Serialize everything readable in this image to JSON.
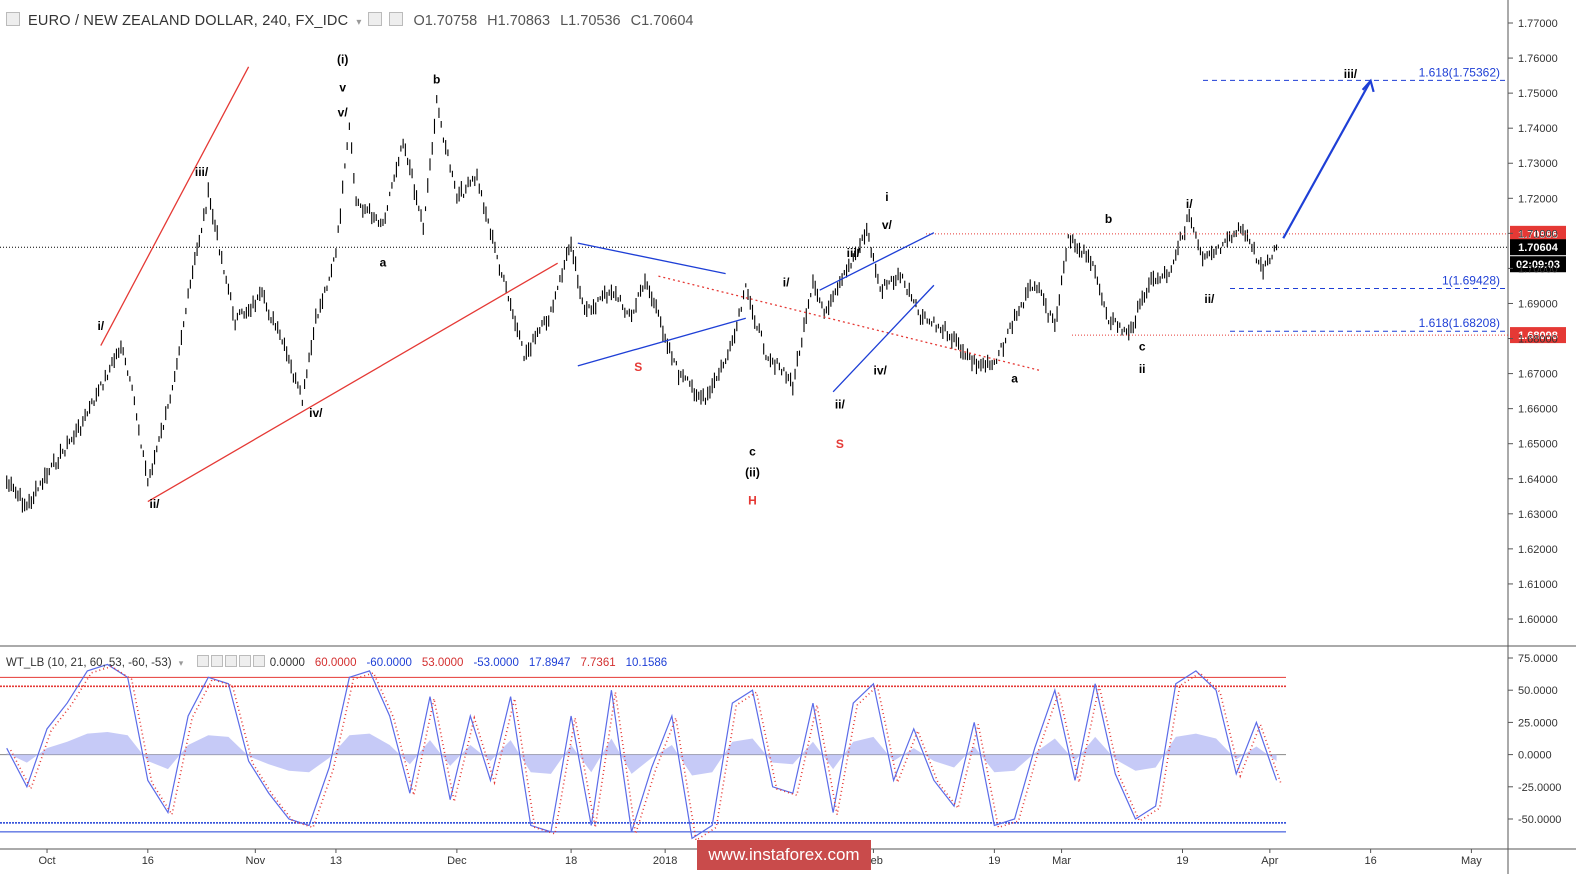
{
  "header": {
    "symbol": "EURO / NEW ZEALAND DOLLAR, 240, FX_IDC",
    "open": "O1.70758",
    "high": "H1.70863",
    "low": "L1.70536",
    "close": "C1.70604"
  },
  "indicator": {
    "name": "WT_LB (10, 21, 60, 53, -60, -53)",
    "values": [
      "0.0000",
      "60.0000",
      "-60.0000",
      "53.0000",
      "-53.0000",
      "17.8947",
      "7.7361",
      "10.1586"
    ],
    "value_colors": [
      "#333333",
      "#d32f2f",
      "#1e3fd6",
      "#d32f2f",
      "#1e3fd6",
      "#1e3fd6",
      "#d32f2f",
      "#1e3fd6"
    ]
  },
  "watermark": "www.instaforex.com",
  "colors": {
    "price": "#000000",
    "red": "#e53935",
    "blue": "#1e3fd6",
    "wave_blue": "#5b6be8",
    "fill": "#b8bdf5",
    "grid": "#e0e3eb"
  },
  "chart_data": [
    {
      "type": "line",
      "ylim": [
        1.595,
        1.775
      ],
      "y_ticks": [
        "1.77000",
        "1.76000",
        "1.75000",
        "1.74000",
        "1.73000",
        "1.72000",
        "1.71000",
        "1.70000",
        "1.69000",
        "1.68000",
        "1.67000",
        "1.66000",
        "1.65000",
        "1.64000",
        "1.63000",
        "1.62000",
        "1.61000",
        "1.60000"
      ],
      "y_tick_values": [
        1.77,
        1.76,
        1.75,
        1.74,
        1.73,
        1.72,
        1.71,
        1.7,
        1.69,
        1.68,
        1.67,
        1.66,
        1.65,
        1.64,
        1.63,
        1.62,
        1.61,
        1.6
      ],
      "x_ticks": [
        {
          "label": "Oct",
          "date": "2017-10-01"
        },
        {
          "label": "16",
          "date": "2017-10-16"
        },
        {
          "label": "Nov",
          "date": "2017-11-01"
        },
        {
          "label": "13",
          "date": "2017-11-13"
        },
        {
          "label": "Dec",
          "date": "2017-12-01"
        },
        {
          "label": "18",
          "date": "2017-12-18"
        },
        {
          "label": "2018",
          "date": "2018-01-01"
        },
        {
          "label": "Feb",
          "date": "2018-02-01"
        },
        {
          "label": "19",
          "date": "2018-02-19"
        },
        {
          "label": "Mar",
          "date": "2018-03-01"
        },
        {
          "label": "19",
          "date": "2018-03-19"
        },
        {
          "label": "Apr",
          "date": "2018-04-01"
        },
        {
          "label": "16",
          "date": "2018-04-16"
        },
        {
          "label": "May",
          "date": "2018-05-01"
        }
      ],
      "series": [
        {
          "x": [
            "2017-09-25",
            "2017-09-28",
            "2017-10-02",
            "2017-10-06",
            "2017-10-09",
            "2017-10-12",
            "2017-10-14",
            "2017-10-16",
            "2017-10-19",
            "2017-10-23",
            "2017-10-25",
            "2017-10-29",
            "2017-11-02",
            "2017-11-05",
            "2017-11-08",
            "2017-11-10",
            "2017-11-13",
            "2017-11-15",
            "2017-11-16",
            "2017-11-20",
            "2017-11-23",
            "2017-11-26",
            "2017-11-28",
            "2017-12-01",
            "2017-12-04",
            "2017-12-07",
            "2017-12-11",
            "2017-12-15",
            "2017-12-18",
            "2017-12-20",
            "2017-12-24",
            "2017-12-27",
            "2017-12-29",
            "2018-01-03",
            "2018-01-07",
            "2018-01-11",
            "2018-01-13",
            "2018-01-16",
            "2018-01-20",
            "2018-01-23",
            "2018-01-25",
            "2018-01-27",
            "2018-01-31",
            "2018-02-02",
            "2018-02-05",
            "2018-02-08",
            "2018-02-12",
            "2018-02-16",
            "2018-02-19",
            "2018-02-22",
            "2018-02-25",
            "2018-02-28",
            "2018-03-02",
            "2018-03-05",
            "2018-03-08",
            "2018-03-11",
            "2018-03-14",
            "2018-03-17",
            "2018-03-20",
            "2018-03-22",
            "2018-03-25",
            "2018-03-28",
            "2018-03-31",
            "2018-04-02"
          ],
          "y": [
            1.639,
            1.632,
            1.644,
            1.655,
            1.666,
            1.678,
            1.662,
            1.639,
            1.66,
            1.702,
            1.721,
            1.685,
            1.692,
            1.679,
            1.662,
            1.685,
            1.704,
            1.74,
            1.719,
            1.713,
            1.737,
            1.712,
            1.747,
            1.72,
            1.726,
            1.703,
            1.675,
            1.687,
            1.708,
            1.687,
            1.694,
            1.686,
            1.697,
            1.67,
            1.662,
            1.678,
            1.694,
            1.676,
            1.667,
            1.695,
            1.687,
            1.695,
            1.711,
            1.694,
            1.698,
            1.686,
            1.682,
            1.673,
            1.672,
            1.686,
            1.696,
            1.683,
            1.708,
            1.704,
            1.686,
            1.681,
            1.696,
            1.699,
            1.715,
            1.702,
            1.706,
            1.712,
            1.699,
            1.706
          ]
        }
      ],
      "levels": [
        {
          "value": 1.70986,
          "label": "1.70986",
          "color": "#e53935",
          "style": "dotted"
        },
        {
          "value": 1.70604,
          "label": "1.70604",
          "color": "#000000",
          "style": "dotted"
        },
        {
          "value": 1.68098,
          "label": "1.68098",
          "color": "#e53935",
          "style": "dotted"
        }
      ],
      "countdown": "02:09:03",
      "fib_levels": [
        {
          "value": 1.75362,
          "text": "1.618(1.75362)"
        },
        {
          "value": 1.69428,
          "text": "1(1.69428)"
        },
        {
          "value": 1.68208,
          "text": "1.618(1.68208)"
        }
      ],
      "wave_labels": [
        {
          "text": "(i)",
          "date": "2017-11-14",
          "y": 1.7585,
          "color": "#000000"
        },
        {
          "text": "v",
          "date": "2017-11-14",
          "y": 1.7505,
          "color": "#000000"
        },
        {
          "text": "v/",
          "date": "2017-11-14",
          "y": 1.7433,
          "color": "#000000"
        },
        {
          "text": "b",
          "date": "2017-11-28",
          "y": 1.7528,
          "color": "#000000"
        },
        {
          "text": "iii/",
          "date": "2017-10-24",
          "y": 1.7264,
          "color": "#000000"
        },
        {
          "text": "i/",
          "date": "2017-10-09",
          "y": 1.6825,
          "color": "#000000"
        },
        {
          "text": "ii/",
          "date": "2017-10-17",
          "y": 1.6316,
          "color": "#000000"
        },
        {
          "text": "iv/",
          "date": "2017-11-10",
          "y": 1.6576,
          "color": "#000000"
        },
        {
          "text": "a",
          "date": "2017-11-20",
          "y": 1.7005,
          "color": "#000000"
        },
        {
          "text": "S",
          "date": "2017-12-28",
          "y": 1.6707,
          "color": "#e53935"
        },
        {
          "text": "c",
          "date": "2018-01-14",
          "y": 1.6467,
          "color": "#000000"
        },
        {
          "text": "(ii)",
          "date": "2018-01-14",
          "y": 1.6407,
          "color": "#000000"
        },
        {
          "text": "H",
          "date": "2018-01-14",
          "y": 1.6327,
          "color": "#e53935"
        },
        {
          "text": "S",
          "date": "2018-01-27",
          "y": 1.6488,
          "color": "#e53935"
        },
        {
          "text": "i/",
          "date": "2018-01-19",
          "y": 1.6948,
          "color": "#000000"
        },
        {
          "text": "iii/",
          "date": "2018-01-29",
          "y": 1.7032,
          "color": "#000000"
        },
        {
          "text": "iv/",
          "date": "2018-02-02",
          "y": 1.6697,
          "color": "#000000"
        },
        {
          "text": "ii/",
          "date": "2018-01-27",
          "y": 1.6601,
          "color": "#000000"
        },
        {
          "text": "i",
          "date": "2018-02-03",
          "y": 1.7193,
          "color": "#000000"
        },
        {
          "text": "v/",
          "date": "2018-02-03",
          "y": 1.7112,
          "color": "#000000"
        },
        {
          "text": "a",
          "date": "2018-02-22",
          "y": 1.6675,
          "color": "#000000"
        },
        {
          "text": "b",
          "date": "2018-03-08",
          "y": 1.713,
          "color": "#000000"
        },
        {
          "text": "c",
          "date": "2018-03-13",
          "y": 1.6766,
          "color": "#000000"
        },
        {
          "text": "ii",
          "date": "2018-03-13",
          "y": 1.6701,
          "color": "#000000"
        },
        {
          "text": "i/",
          "date": "2018-03-20",
          "y": 1.7172,
          "color": "#000000"
        },
        {
          "text": "ii/",
          "date": "2018-03-23",
          "y": 1.6902,
          "color": "#000000"
        },
        {
          "text": "iii/",
          "date": "2018-04-13",
          "y": 1.7543,
          "color": "#000000"
        }
      ]
    },
    {
      "type": "line",
      "ylim": [
        -72,
        82
      ],
      "y_ticks": [
        "75.0000",
        "50.0000",
        "25.0000",
        "0.0000",
        "-25.0000",
        "-50.0000"
      ],
      "y_tick_values": [
        75,
        50,
        25,
        0,
        -25,
        -50
      ],
      "levels": [
        60,
        53,
        -53,
        -60
      ],
      "series": [
        {
          "name": "wt1",
          "x": [
            "2017-09-25",
            "2017-09-28",
            "2017-10-01",
            "2017-10-04",
            "2017-10-07",
            "2017-10-10",
            "2017-10-13",
            "2017-10-16",
            "2017-10-19",
            "2017-10-22",
            "2017-10-25",
            "2017-10-28",
            "2017-10-31",
            "2017-11-03",
            "2017-11-06",
            "2017-11-09",
            "2017-11-12",
            "2017-11-15",
            "2017-11-18",
            "2017-11-21",
            "2017-11-24",
            "2017-11-27",
            "2017-11-30",
            "2017-12-03",
            "2017-12-06",
            "2017-12-09",
            "2017-12-12",
            "2017-12-15",
            "2017-12-18",
            "2017-12-21",
            "2017-12-24",
            "2017-12-27",
            "2017-12-30",
            "2018-01-02",
            "2018-01-05",
            "2018-01-08",
            "2018-01-11",
            "2018-01-14",
            "2018-01-17",
            "2018-01-20",
            "2018-01-23",
            "2018-01-26",
            "2018-01-29",
            "2018-02-01",
            "2018-02-04",
            "2018-02-07",
            "2018-02-10",
            "2018-02-13",
            "2018-02-16",
            "2018-02-19",
            "2018-02-22",
            "2018-02-25",
            "2018-02-28",
            "2018-03-03",
            "2018-03-06",
            "2018-03-09",
            "2018-03-12",
            "2018-03-15",
            "2018-03-18",
            "2018-03-21",
            "2018-03-24",
            "2018-03-27",
            "2018-03-30",
            "2018-04-02"
          ],
          "values": [
            5,
            -25,
            20,
            40,
            65,
            70,
            60,
            -20,
            -45,
            30,
            60,
            55,
            -5,
            -30,
            -50,
            -55,
            -10,
            60,
            65,
            30,
            -30,
            45,
            -35,
            30,
            -20,
            45,
            -55,
            -60,
            30,
            -55,
            50,
            -60,
            -10,
            30,
            -65,
            -55,
            40,
            50,
            -25,
            -30,
            40,
            -45,
            40,
            55,
            -20,
            20,
            -20,
            -40,
            25,
            -55,
            -50,
            5,
            50,
            -20,
            55,
            -15,
            -50,
            -40,
            55,
            65,
            50,
            -15,
            25,
            -20
          ]
        },
        {
          "name": "wt2",
          "x": [
            "2017-09-25",
            "2017-10-05",
            "2017-10-15",
            "2017-10-25",
            "2017-11-04",
            "2017-11-14",
            "2017-11-24",
            "2017-12-04",
            "2017-12-14",
            "2017-12-24",
            "2018-01-03",
            "2018-01-13",
            "2018-01-23",
            "2018-02-02",
            "2018-02-12",
            "2018-02-22",
            "2018-03-04",
            "2018-03-14",
            "2018-03-24",
            "2018-04-02"
          ],
          "values": [
            0,
            30,
            -10,
            50,
            -10,
            30,
            40,
            10,
            -40,
            0,
            -20,
            -40,
            10,
            30,
            -10,
            -35,
            30,
            -35,
            40,
            10
          ]
        }
      ]
    }
  ]
}
